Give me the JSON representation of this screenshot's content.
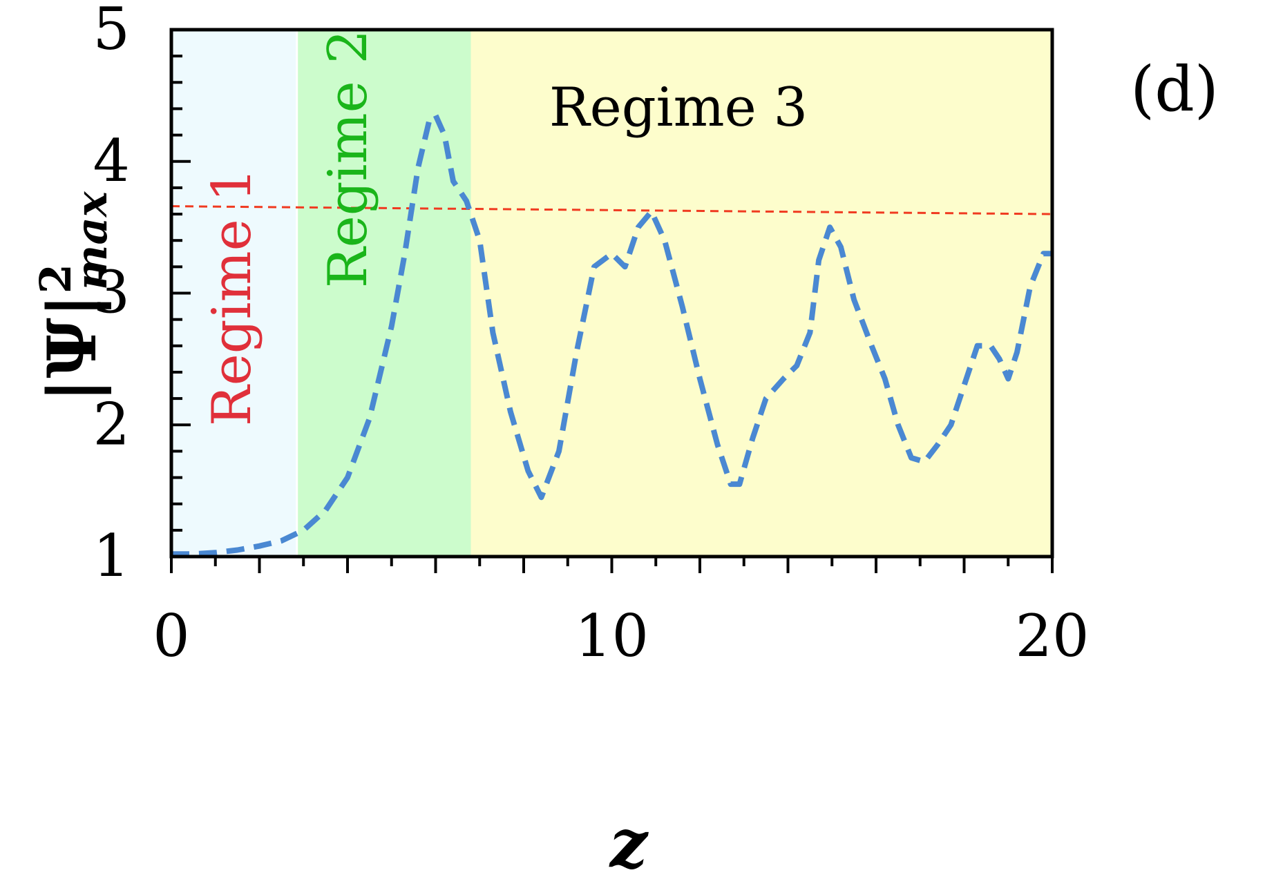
{
  "chart_data": {
    "type": "line",
    "panel_label": "(d)",
    "xlabel": "z",
    "ylabel": "|Ψ|²max",
    "ylabel_parts": {
      "base": "|Ψ|",
      "sup": "2",
      "sub": "max"
    },
    "xlim": [
      0,
      20
    ],
    "ylim": [
      1,
      5
    ],
    "x_ticks": [
      0,
      10,
      20
    ],
    "y_ticks": [
      1,
      2,
      3,
      4,
      5
    ],
    "grid": false,
    "regimes": [
      {
        "label": "Regime 1",
        "x_start": 0,
        "x_end": 2.85,
        "fill": "#eefafe",
        "text_color": "#e0303a"
      },
      {
        "label": "Regime 2",
        "x_start": 2.85,
        "x_end": 6.8,
        "fill": "#ccfccc",
        "text_color": "#1ab51a"
      },
      {
        "label": "Regime 3",
        "x_start": 6.8,
        "x_end": 20,
        "fill": "#fdfdcc",
        "text_color": "#000000"
      }
    ],
    "threshold_line": {
      "y_start": 3.66,
      "y_end": 3.6,
      "color": "#f03a20",
      "style": "dashed"
    },
    "series": [
      {
        "color": "#4a88d2",
        "style": "dashed",
        "x": [
          0,
          0.5,
          1,
          1.5,
          2,
          2.5,
          3,
          3.5,
          4,
          4.5,
          5,
          5.3,
          5.6,
          5.85,
          6,
          6.2,
          6.4,
          6.5,
          6.7,
          6.8,
          7,
          7.3,
          7.7,
          8.1,
          8.4,
          8.8,
          9.2,
          9.6,
          10,
          10.3,
          10.6,
          10.9,
          11.2,
          11.6,
          12,
          12.4,
          12.7,
          12.9,
          13.2,
          13.5,
          13.9,
          14.2,
          14.5,
          14.7,
          14.95,
          15.2,
          15.5,
          15.9,
          16.2,
          16.5,
          16.8,
          17.1,
          17.4,
          17.7,
          18,
          18.3,
          18.6,
          18.8,
          19,
          19.2,
          19.5,
          19.8,
          20
        ],
        "y": [
          1.02,
          1.02,
          1.03,
          1.05,
          1.08,
          1.12,
          1.2,
          1.35,
          1.6,
          2.05,
          2.75,
          3.3,
          3.95,
          4.3,
          4.35,
          4.2,
          3.85,
          3.8,
          3.7,
          3.6,
          3.4,
          2.7,
          2.1,
          1.65,
          1.45,
          1.8,
          2.55,
          3.2,
          3.3,
          3.2,
          3.5,
          3.62,
          3.4,
          2.9,
          2.35,
          1.85,
          1.55,
          1.55,
          1.9,
          2.2,
          2.35,
          2.45,
          2.7,
          3.25,
          3.5,
          3.35,
          2.95,
          2.6,
          2.35,
          2.0,
          1.75,
          1.72,
          1.85,
          2.0,
          2.3,
          2.6,
          2.6,
          2.5,
          2.35,
          2.55,
          3.05,
          3.3,
          3.3
        ]
      }
    ]
  }
}
